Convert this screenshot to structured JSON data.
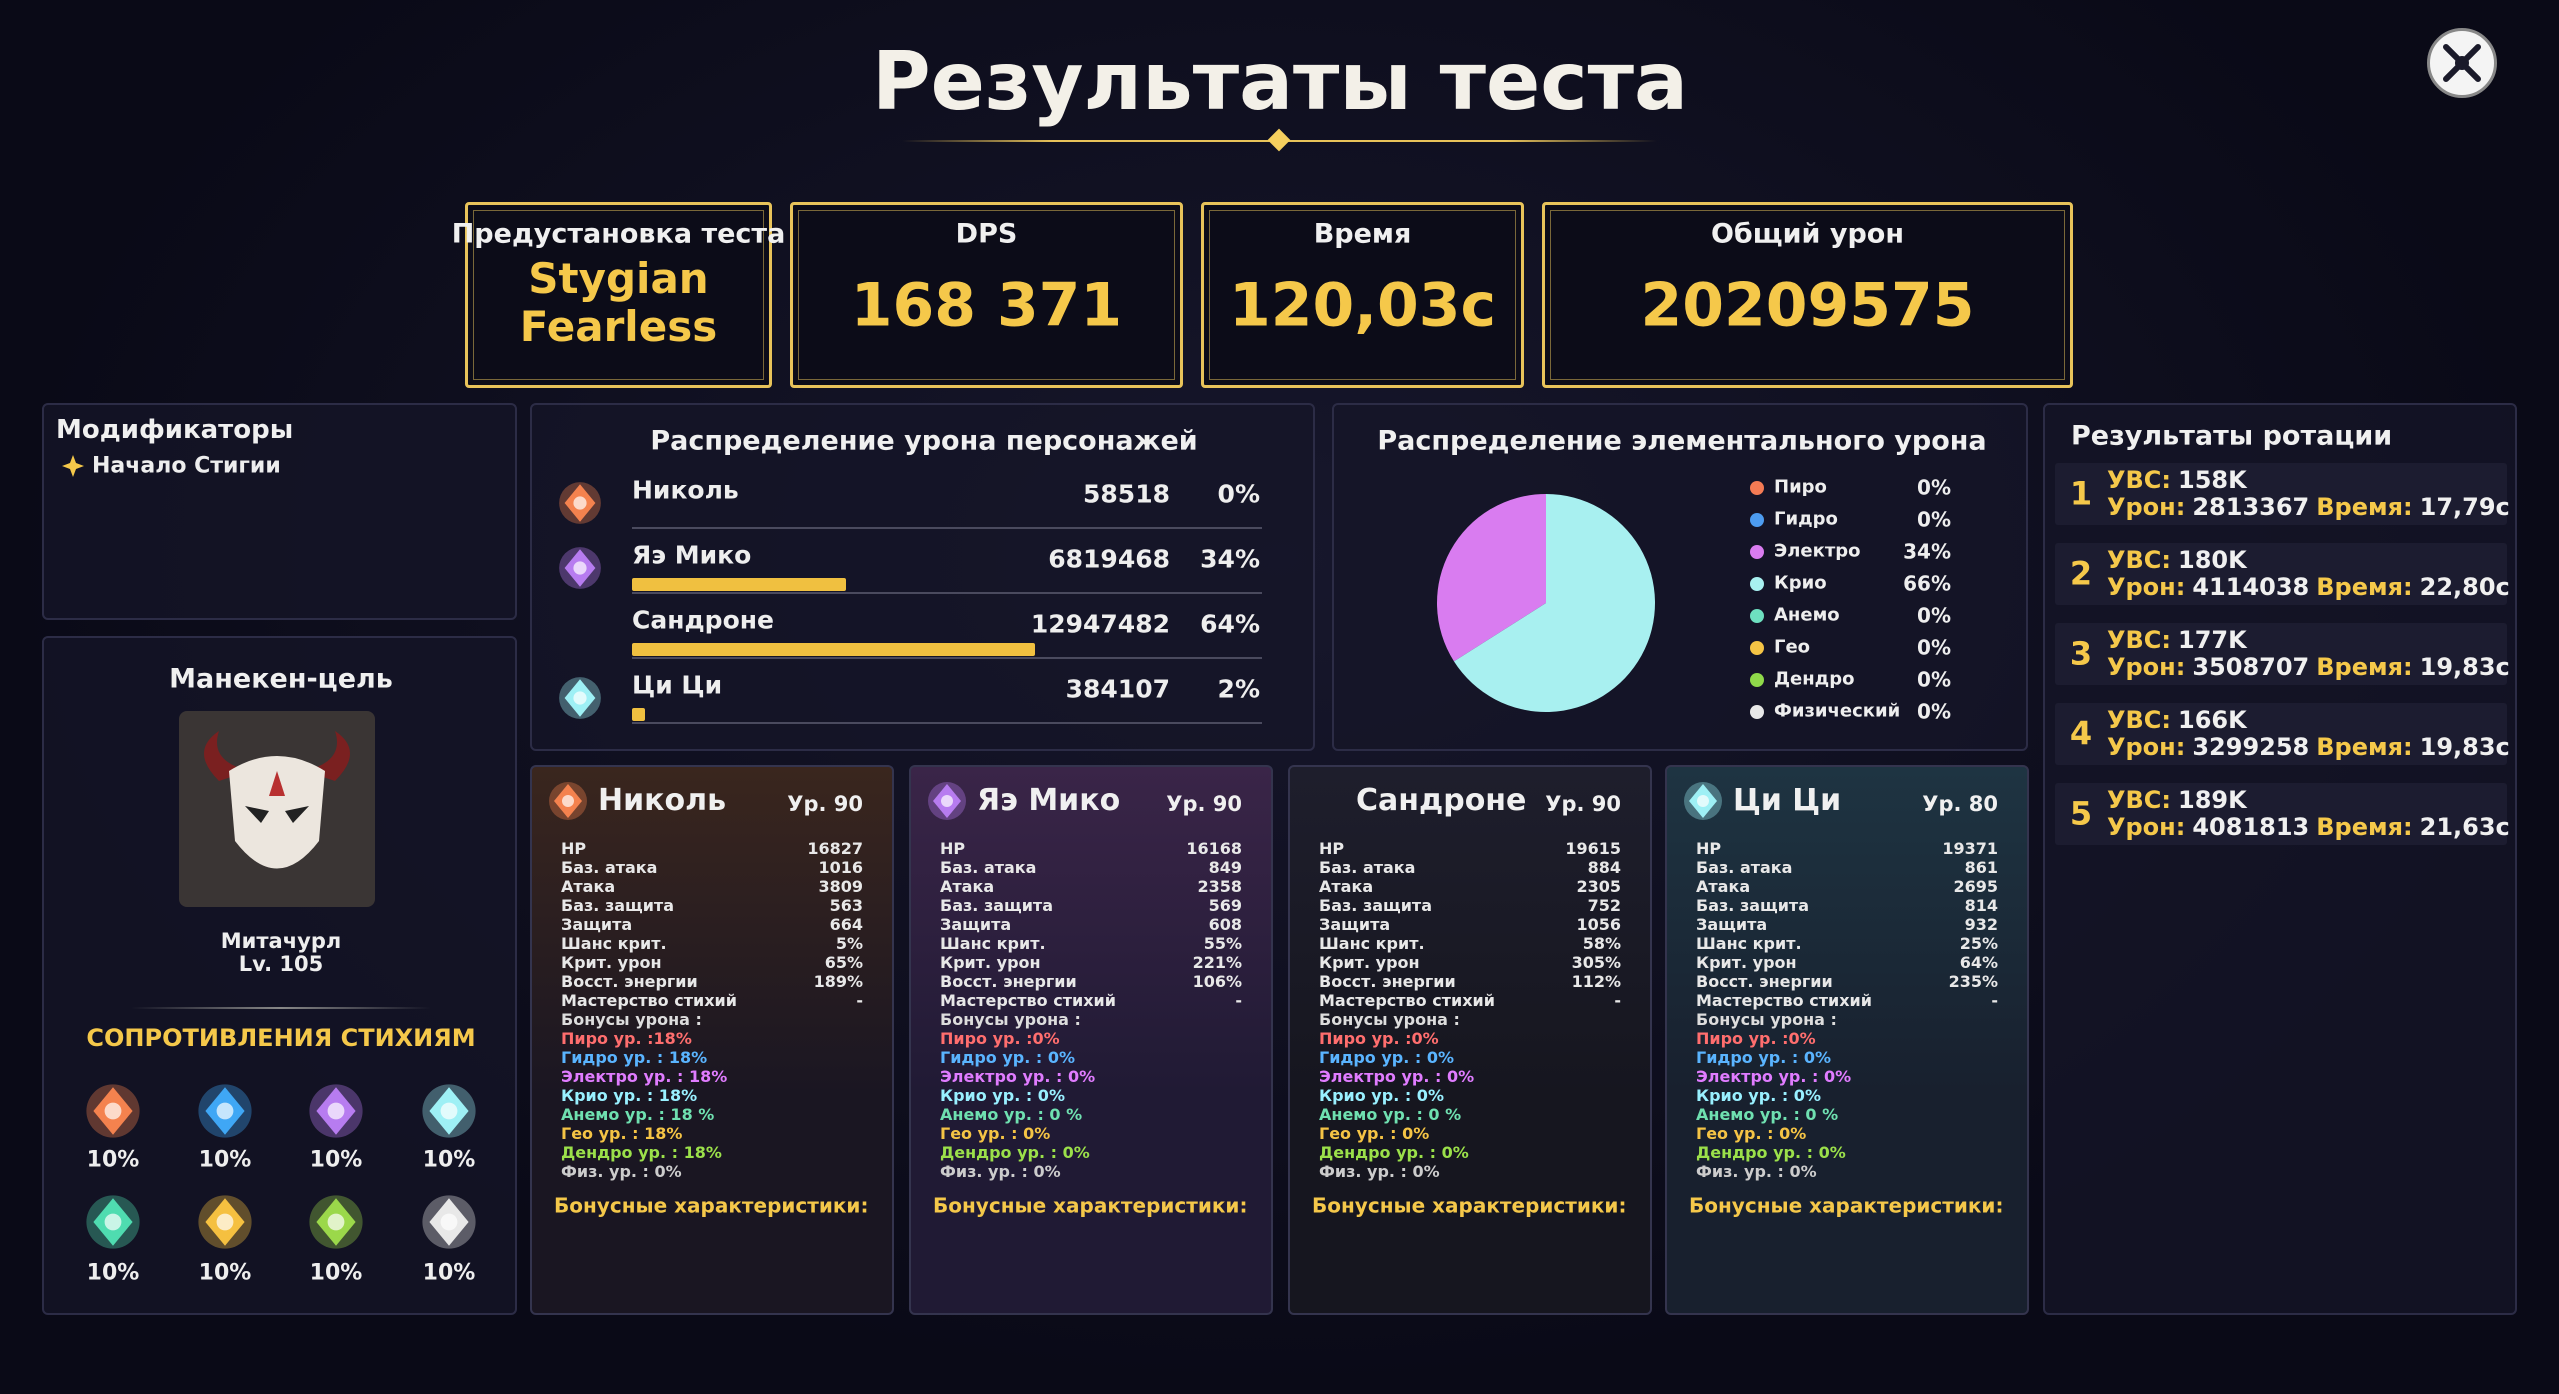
{
  "title": "Результаты теста",
  "summary": [
    {
      "label": "Предустановка теста",
      "value": "Stygian Fearless"
    },
    {
      "label": "DPS",
      "value": "168 371"
    },
    {
      "label": "Время",
      "value": "120,03с"
    },
    {
      "label": "Общий урон",
      "value": "20209575"
    }
  ],
  "modifiers": {
    "title": "Модификаторы",
    "items": [
      "Начало Стигии"
    ]
  },
  "target": {
    "title": "Манекен-цель",
    "name": "Митачурл",
    "level": "Lv. 105",
    "resistances_title": "СОПРОТИВЛЕНИЯ СТИХИЯМ",
    "resistances": [
      "10%",
      "10%",
      "10%",
      "10%",
      "10%",
      "10%",
      "10%",
      "10%"
    ]
  },
  "damage_distribution": {
    "title": "Распределение урона персонажей",
    "rows": [
      {
        "name": "Николь",
        "damage": 58518,
        "percent": 0,
        "percent_label": "0%"
      },
      {
        "name": "Яэ Мико",
        "damage": 6819468,
        "percent": 34,
        "percent_label": "34%"
      },
      {
        "name": "Сандроне",
        "damage": 12947482,
        "percent": 64,
        "percent_label": "64%"
      },
      {
        "name": "Ци Ци",
        "damage": 384107,
        "percent": 2,
        "percent_label": "2%"
      }
    ]
  },
  "element_distribution": {
    "title": "Распределение элементального урона",
    "items": [
      {
        "name": "Пиро",
        "color": "#f47b54",
        "percent": 0,
        "label": "0%"
      },
      {
        "name": "Гидро",
        "color": "#4d9cf0",
        "percent": 0,
        "label": "0%"
      },
      {
        "name": "Электро",
        "color": "#d97cf0",
        "percent": 34,
        "label": "34%"
      },
      {
        "name": "Крио",
        "color": "#a8f0f0",
        "percent": 66,
        "label": "66%"
      },
      {
        "name": "Анемо",
        "color": "#6ee0c0",
        "percent": 0,
        "label": "0%"
      },
      {
        "name": "Гео",
        "color": "#f5c445",
        "percent": 0,
        "label": "0%"
      },
      {
        "name": "Дендро",
        "color": "#8fd94a",
        "percent": 0,
        "label": "0%"
      },
      {
        "name": "Физический",
        "color": "#e8e8e8",
        "percent": 0,
        "label": "0%"
      }
    ]
  },
  "characters": [
    {
      "name": "Николь",
      "level": "Ур. 90",
      "stats": [
        {
          "label": "HP",
          "value": "16827"
        },
        {
          "label": "Баз. атака",
          "value": "1016"
        },
        {
          "label": "Атака",
          "value": "3809"
        },
        {
          "label": "Баз. защита",
          "value": "563"
        },
        {
          "label": "Защита",
          "value": "664"
        },
        {
          "label": "Шанс крит.",
          "value": "5%"
        },
        {
          "label": "Крит. урон",
          "value": "65%"
        },
        {
          "label": "Восст. энергии",
          "value": "189%"
        },
        {
          "label": "Мастерство стихий",
          "value": "-"
        }
      ],
      "bonuses": [
        "Бонусы урона :",
        "Пиро ур. :18%",
        "Гидро ур. : 18%",
        "Электро ур. : 18%",
        "Крио ур. : 18%",
        "Анемо ур. : 18 %",
        "Гео ур. : 18%",
        "Дендро ур. : 18%",
        "Физ. ур. : 0%"
      ],
      "extra": "Бонусные характеристики:"
    },
    {
      "name": "Яэ Мико",
      "level": "Ур. 90",
      "stats": [
        {
          "label": "HP",
          "value": "16168"
        },
        {
          "label": "Баз. атака",
          "value": "849"
        },
        {
          "label": "Атака",
          "value": "2358"
        },
        {
          "label": "Баз. защита",
          "value": "569"
        },
        {
          "label": "Защита",
          "value": "608"
        },
        {
          "label": "Шанс крит.",
          "value": "55%"
        },
        {
          "label": "Крит. урон",
          "value": "221%"
        },
        {
          "label": "Восст. энергии",
          "value": "106%"
        },
        {
          "label": "Мастерство стихий",
          "value": "-"
        }
      ],
      "bonuses": [
        "Бонусы урона :",
        "Пиро ур. :0%",
        "Гидро ур. : 0%",
        "Электро ур. : 0%",
        "Крио ур. : 0%",
        "Анемо ур. : 0 %",
        "Гео ур. : 0%",
        "Дендро ур. : 0%",
        "Физ. ур. : 0%"
      ],
      "extra": "Бонусные характеристики:"
    },
    {
      "name": "Сандроне",
      "level": "Ур. 90",
      "stats": [
        {
          "label": "HP",
          "value": "19615"
        },
        {
          "label": "Баз. атака",
          "value": "884"
        },
        {
          "label": "Атака",
          "value": "2305"
        },
        {
          "label": "Баз. защита",
          "value": "752"
        },
        {
          "label": "Защита",
          "value": "1056"
        },
        {
          "label": "Шанс крит.",
          "value": "58%"
        },
        {
          "label": "Крит. урон",
          "value": "305%"
        },
        {
          "label": "Восст. энергии",
          "value": "112%"
        },
        {
          "label": "Мастерство стихий",
          "value": "-"
        }
      ],
      "bonuses": [
        "Бонусы урона :",
        "Пиро ур. :0%",
        "Гидро ур. : 0%",
        "Электро ур. : 0%",
        "Крио ур. : 0%",
        "Анемо ур. : 0 %",
        "Гео ур. : 0%",
        "Дендро ур. : 0%",
        "Физ. ур. : 0%"
      ],
      "extra": "Бонусные характеристики:"
    },
    {
      "name": "Ци Ци",
      "level": "Ур. 80",
      "stats": [
        {
          "label": "HP",
          "value": "19371"
        },
        {
          "label": "Баз. атака",
          "value": "861"
        },
        {
          "label": "Атака",
          "value": "2695"
        },
        {
          "label": "Баз. защита",
          "value": "814"
        },
        {
          "label": "Защита",
          "value": "932"
        },
        {
          "label": "Шанс крит.",
          "value": "25%"
        },
        {
          "label": "Крит. урон",
          "value": "64%"
        },
        {
          "label": "Восст. энергии",
          "value": "235%"
        },
        {
          "label": "Мастерство стихий",
          "value": "-"
        }
      ],
      "bonuses": [
        "Бонусы урона :",
        "Пиро ур. :0%",
        "Гидро ур. : 0%",
        "Электро ур. : 0%",
        "Крио ур. : 0%",
        "Анемо ур. : 0 %",
        "Гео ур. : 0%",
        "Дендро ур. : 0%",
        "Физ. ур. : 0%"
      ],
      "extra": "Бонусные характеристики:"
    }
  ],
  "rotations": {
    "title": "Результаты ротации",
    "items": [
      {
        "n": "1",
        "dps_label": "УВС:",
        "dps": "158K",
        "damage_label": "Урон:",
        "damage": "2813367",
        "time_label": "Время:",
        "time": "17,79с"
      },
      {
        "n": "2",
        "dps_label": "УВС:",
        "dps": "180K",
        "damage_label": "Урон:",
        "damage": "4114038",
        "time_label": "Время:",
        "time": "22,80с"
      },
      {
        "n": "3",
        "dps_label": "УВС:",
        "dps": "177K",
        "damage_label": "Урон:",
        "damage": "3508707",
        "time_label": "Время:",
        "time": "19,83с"
      },
      {
        "n": "4",
        "dps_label": "УВС:",
        "dps": "166K",
        "damage_label": "Урон:",
        "damage": "3299258",
        "time_label": "Время:",
        "time": "19,83с"
      },
      {
        "n": "5",
        "dps_label": "УВС:",
        "dps": "189K",
        "damage_label": "Урон:",
        "damage": "4081813",
        "time_label": "Время:",
        "time": "21,63с"
      }
    ]
  }
}
